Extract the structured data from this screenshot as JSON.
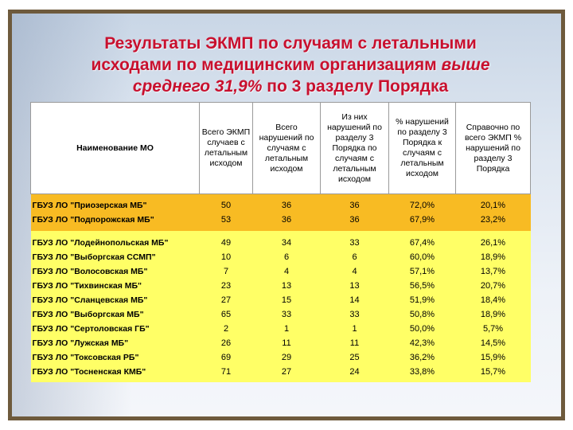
{
  "title": {
    "line1": "Результаты ЭКМП по случаям с летальными",
    "line2a": "исходами по медицинским организациям ",
    "line2b": "выше",
    "line3a": "среднего 31,9%",
    "line3b": " по 3 разделу Порядка"
  },
  "table": {
    "headers": [
      "Наименование МО",
      "Всего ЭКМП случаев с летальным исходом",
      "Всего нарушений по случаям с летальным исходом",
      "Из них нарушений по разделу 3 Порядка по случаям с летальным исходом",
      "% нарушений по разделу 3 Порядка к случаям с летальным исходом",
      "Справочно по всего ЭКМП % нарушений по разделу 3 Порядка"
    ],
    "group_orange": [
      [
        "ГБУЗ ЛО \"Приозерская МБ\"",
        "50",
        "36",
        "36",
        "72,0%",
        "20,1%"
      ],
      [
        "ГБУЗ ЛО \"Подпорожская МБ\"",
        "53",
        "36",
        "36",
        "67,9%",
        "23,2%"
      ]
    ],
    "group_yellow": [
      [
        "ГБУЗ ЛО \"Лодейнопольская МБ\"",
        "49",
        "34",
        "33",
        "67,4%",
        "26,1%"
      ],
      [
        "ГБУЗ ЛО \"Выборгская ССМП\"",
        "10",
        "6",
        "6",
        "60,0%",
        "18,9%"
      ],
      [
        "ГБУЗ ЛО \"Волосовская МБ\"",
        "7",
        "4",
        "4",
        "57,1%",
        "13,7%"
      ],
      [
        "ГБУЗ ЛО \"Тихвинская МБ\"",
        "23",
        "13",
        "13",
        "56,5%",
        "20,7%"
      ],
      [
        "ГБУЗ ЛО \"Сланцевская МБ\"",
        "27",
        "15",
        "14",
        "51,9%",
        "18,4%"
      ],
      [
        "ГБУЗ ЛО \"Выборгская МБ\"",
        "65",
        "33",
        "33",
        "50,8%",
        "18,9%"
      ],
      [
        "ГБУЗ ЛО \"Сертоловская ГБ\"",
        "2",
        "1",
        "1",
        "50,0%",
        "5,7%"
      ],
      [
        "ГБУЗ ЛО \"Лужская МБ\"",
        "26",
        "11",
        "11",
        "42,3%",
        "14,5%"
      ],
      [
        "ГБУЗ ЛО \"Токсовская РБ\"",
        "69",
        "29",
        "25",
        "36,2%",
        "15,9%"
      ],
      [
        "ГБУЗ ЛО \"Тосненская КМБ\"",
        "71",
        "27",
        "24",
        "33,8%",
        "15,7%"
      ]
    ]
  },
  "colors": {
    "title": "#c8102e",
    "group_orange": "#f8bb23",
    "group_yellow": "#ffff66",
    "frame_border": "#6e5a3c"
  }
}
